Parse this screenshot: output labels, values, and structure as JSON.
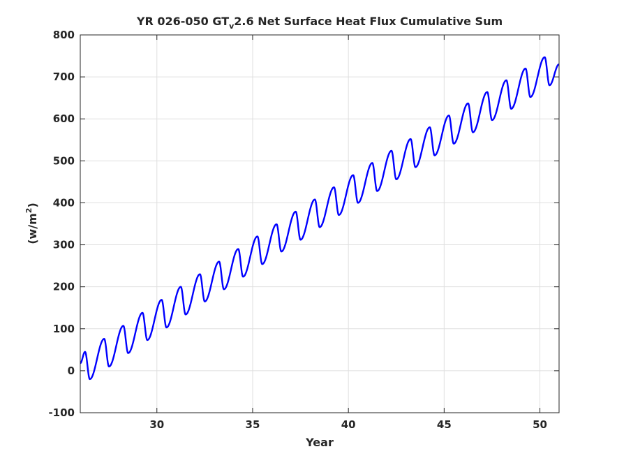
{
  "chart_data": {
    "type": "line",
    "title": {
      "part1": "YR 026-050 GT",
      "subscript": "v",
      "part2": "2.6 Net Surface Heat Flux  Cumulative Sum"
    },
    "xlabel": "Year",
    "ylabel": {
      "base": "(w/m",
      "superscript": "2",
      "close": ")"
    },
    "xlim": [
      26,
      51
    ],
    "ylim": [
      -100,
      800
    ],
    "xticks": [
      30,
      35,
      40,
      45,
      50
    ],
    "yticks": [
      -100,
      0,
      100,
      200,
      300,
      400,
      500,
      600,
      700,
      800
    ],
    "grid": true,
    "series": [
      {
        "color": "#0000ff",
        "x": [
          26.0,
          26.25,
          26.5,
          27.25,
          27.5,
          28.25,
          28.5,
          29.25,
          29.5,
          30.25,
          30.5,
          31.25,
          31.5,
          32.25,
          32.5,
          33.25,
          33.5,
          34.25,
          34.5,
          35.25,
          35.5,
          36.25,
          36.5,
          37.25,
          37.5,
          38.25,
          38.5,
          39.25,
          39.5,
          40.25,
          40.5,
          41.25,
          41.5,
          42.25,
          42.5,
          43.25,
          43.5,
          44.25,
          44.5,
          45.25,
          45.5,
          46.25,
          46.5,
          47.25,
          47.5,
          48.25,
          48.5,
          49.25,
          49.5,
          50.25,
          50.5,
          51.0
        ],
        "y": [
          18,
          45,
          -20,
          76,
          10,
          107,
          42,
          138,
          73,
          169,
          103,
          200,
          134,
          230,
          165,
          260,
          194,
          290,
          224,
          320,
          254,
          349,
          284,
          379,
          312,
          408,
          342,
          437,
          371,
          466,
          400,
          495,
          428,
          524,
          456,
          552,
          485,
          580,
          513,
          608,
          541,
          637,
          568,
          664,
          597,
          692,
          624,
          720,
          652,
          747,
          680,
          730
        ]
      }
    ]
  }
}
